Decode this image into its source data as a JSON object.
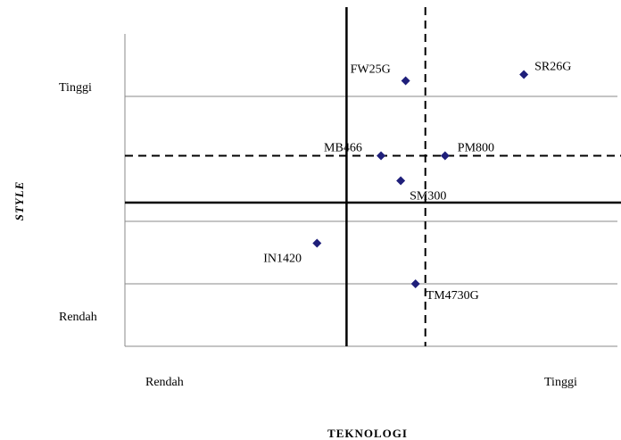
{
  "chart_data": {
    "type": "scatter",
    "xlabel": "TEKNOLOGI",
    "ylabel": "STYLE",
    "x_tick_labels": {
      "low": "Rendah",
      "high": "Tinggi"
    },
    "y_tick_labels": {
      "low": "Rendah",
      "high": "Tinggi"
    },
    "xlim": [
      0,
      100
    ],
    "ylim": [
      0,
      100
    ],
    "grid": true,
    "reference_lines": {
      "x_solid": 45,
      "x_dashed": 61,
      "y_solid": 46,
      "y_dashed": 61
    },
    "points": [
      {
        "label": "FW25G",
        "x": 57,
        "y": 85
      },
      {
        "label": "SR26G",
        "x": 81,
        "y": 87
      },
      {
        "label": "MB466",
        "x": 52,
        "y": 61
      },
      {
        "label": "PM800",
        "x": 65,
        "y": 61
      },
      {
        "label": "SM300",
        "x": 56,
        "y": 53
      },
      {
        "label": "IN1420",
        "x": 39,
        "y": 33
      },
      {
        "label": "TM4730G",
        "x": 59,
        "y": 20
      }
    ],
    "marker_color": "#1f1f7a"
  }
}
